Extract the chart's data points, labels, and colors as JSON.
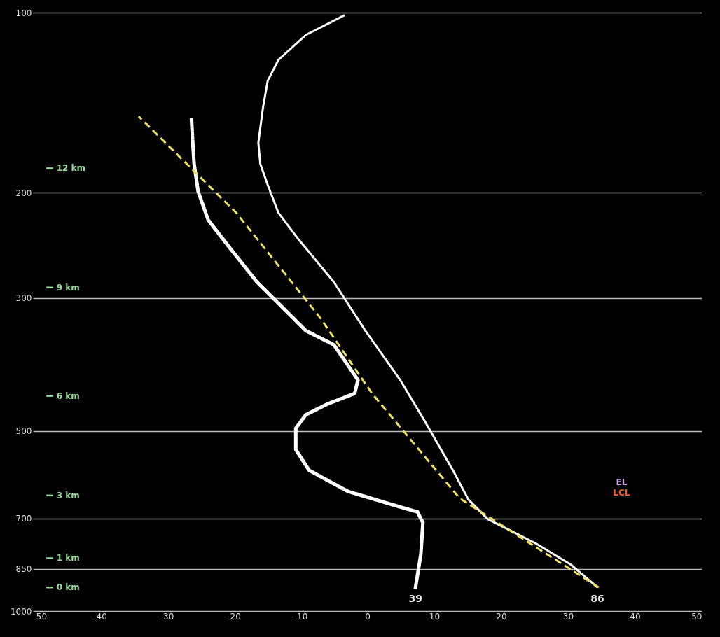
{
  "chart_data": {
    "type": "line",
    "xlim": [
      -50,
      50
    ],
    "xticks": [
      -50,
      -40,
      -30,
      -20,
      -10,
      0,
      10,
      20,
      30,
      40,
      50
    ],
    "ylim": [
      1000,
      100
    ],
    "yticks": [
      100,
      200,
      300,
      500,
      700,
      850,
      1000
    ],
    "log": "y",
    "grid": "y",
    "marker": "none",
    "series": [
      {
        "color": "#ffffff",
        "line_style": "solid",
        "x": [
          34.4,
          30.4,
          25.2,
          18.0,
          15.1,
          12.8,
          8.6,
          4.9,
          -0.3,
          -5.0,
          -10.2,
          -13.3,
          -14.9,
          -16.0,
          -16.3,
          -15.6,
          -14.9,
          -13.3,
          -9.2,
          -3.4
        ],
        "values": [
          913,
          836,
          771,
          702,
          651,
          582,
          482,
          411,
          340,
          282,
          240,
          216,
          194,
          179,
          165,
          144,
          130,
          120,
          109,
          101
        ]
      },
      {
        "color": "#ffffff",
        "line_style": "dotted",
        "x": [
          7.2,
          8.0,
          8.3,
          7.5,
          3.3,
          -2.9,
          -8.7,
          -10.7,
          -10.7,
          -9.2,
          -6.0,
          -1.9,
          -1.4,
          -5.0,
          -9.2,
          -13.3,
          -16.5,
          -20.6,
          -23.8,
          -25.3,
          -25.9,
          -26.1,
          -26.3
        ],
        "values": [
          913,
          803,
          712,
          683,
          662,
          631,
          582,
          537,
          495,
          470,
          451,
          433,
          411,
          359,
          340,
          306,
          282,
          247,
          222,
          199,
          179,
          165,
          150
        ]
      },
      {
        "color": "#f0e060",
        "line_style": "dashed",
        "x": [
          34.6,
          13.8,
          0.7,
          -7.1,
          -19.6,
          -34.2
        ],
        "values": [
          913,
          648,
          433,
          323,
          216,
          149
        ]
      }
    ],
    "ref_lines": [
      {
        "axis": "y",
        "value": 182,
        "label": "12 km",
        "color": "#98d898"
      },
      {
        "axis": "y",
        "value": 288,
        "label": "9 km",
        "color": "#98d898"
      },
      {
        "axis": "y",
        "value": 437,
        "label": "6 km",
        "color": "#98d898"
      },
      {
        "axis": "y",
        "value": 641,
        "label": "3 km",
        "color": "#98d898"
      },
      {
        "axis": "y",
        "value": 816,
        "label": "1 km",
        "color": "#98d898"
      },
      {
        "axis": "y",
        "value": 913,
        "label": "0 km",
        "color": "#98d898"
      }
    ],
    "annotations": [
      {
        "text": "39",
        "x": 7.2,
        "y": 913
      },
      {
        "text": "86",
        "x": 34.4,
        "y": 913
      },
      "EL",
      "LCL"
    ]
  }
}
